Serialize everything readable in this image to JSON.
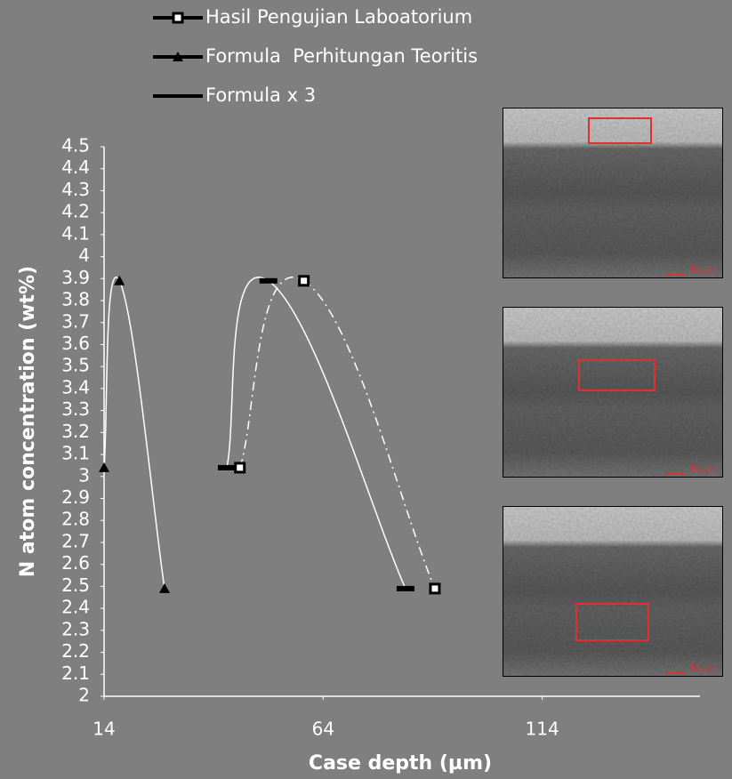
{
  "chart_data": {
    "type": "scatter",
    "x_label": "Case depth (µm)",
    "y_label": "N atom concentration (wt%)",
    "xlim": [
      14,
      150
    ],
    "xticks": [
      14,
      64,
      114
    ],
    "ylim": [
      2,
      4.5
    ],
    "yticks": [
      2,
      2.1,
      2.2,
      2.3,
      2.4,
      2.5,
      2.6,
      2.7,
      2.8,
      2.9,
      3,
      3.1,
      3.2,
      3.3,
      3.4,
      3.5,
      3.6,
      3.7,
      3.8,
      3.9,
      4,
      4.1,
      4.2,
      4.3,
      4.4,
      4.5
    ],
    "smooth": true,
    "background": "#7f7f7f",
    "series": [
      {
        "name": "Hasil Pengujian Laboatorium",
        "marker": "square",
        "line_style": "dashdot",
        "color": "#000000",
        "line_color": "#ffffff",
        "x": [
          45,
          59.6,
          89.5
        ],
        "values": [
          3.04,
          3.89,
          2.49
        ]
      },
      {
        "name": "Formula  Perhitungan Teoritis",
        "marker": "triangle",
        "line_style": "solid",
        "color": "#000000",
        "line_color": "#ffffff",
        "x": [
          14,
          17.5,
          27.8
        ],
        "values": [
          3.04,
          3.89,
          2.49
        ]
      },
      {
        "name": "Formula x 3",
        "marker": "dash",
        "line_style": "solid",
        "color": "#000000",
        "line_color": "#ffffff",
        "x": [
          42,
          51.5,
          82.8
        ],
        "values": [
          3.04,
          3.89,
          2.49
        ]
      }
    ],
    "micrograph_scale_label": "50µm"
  }
}
